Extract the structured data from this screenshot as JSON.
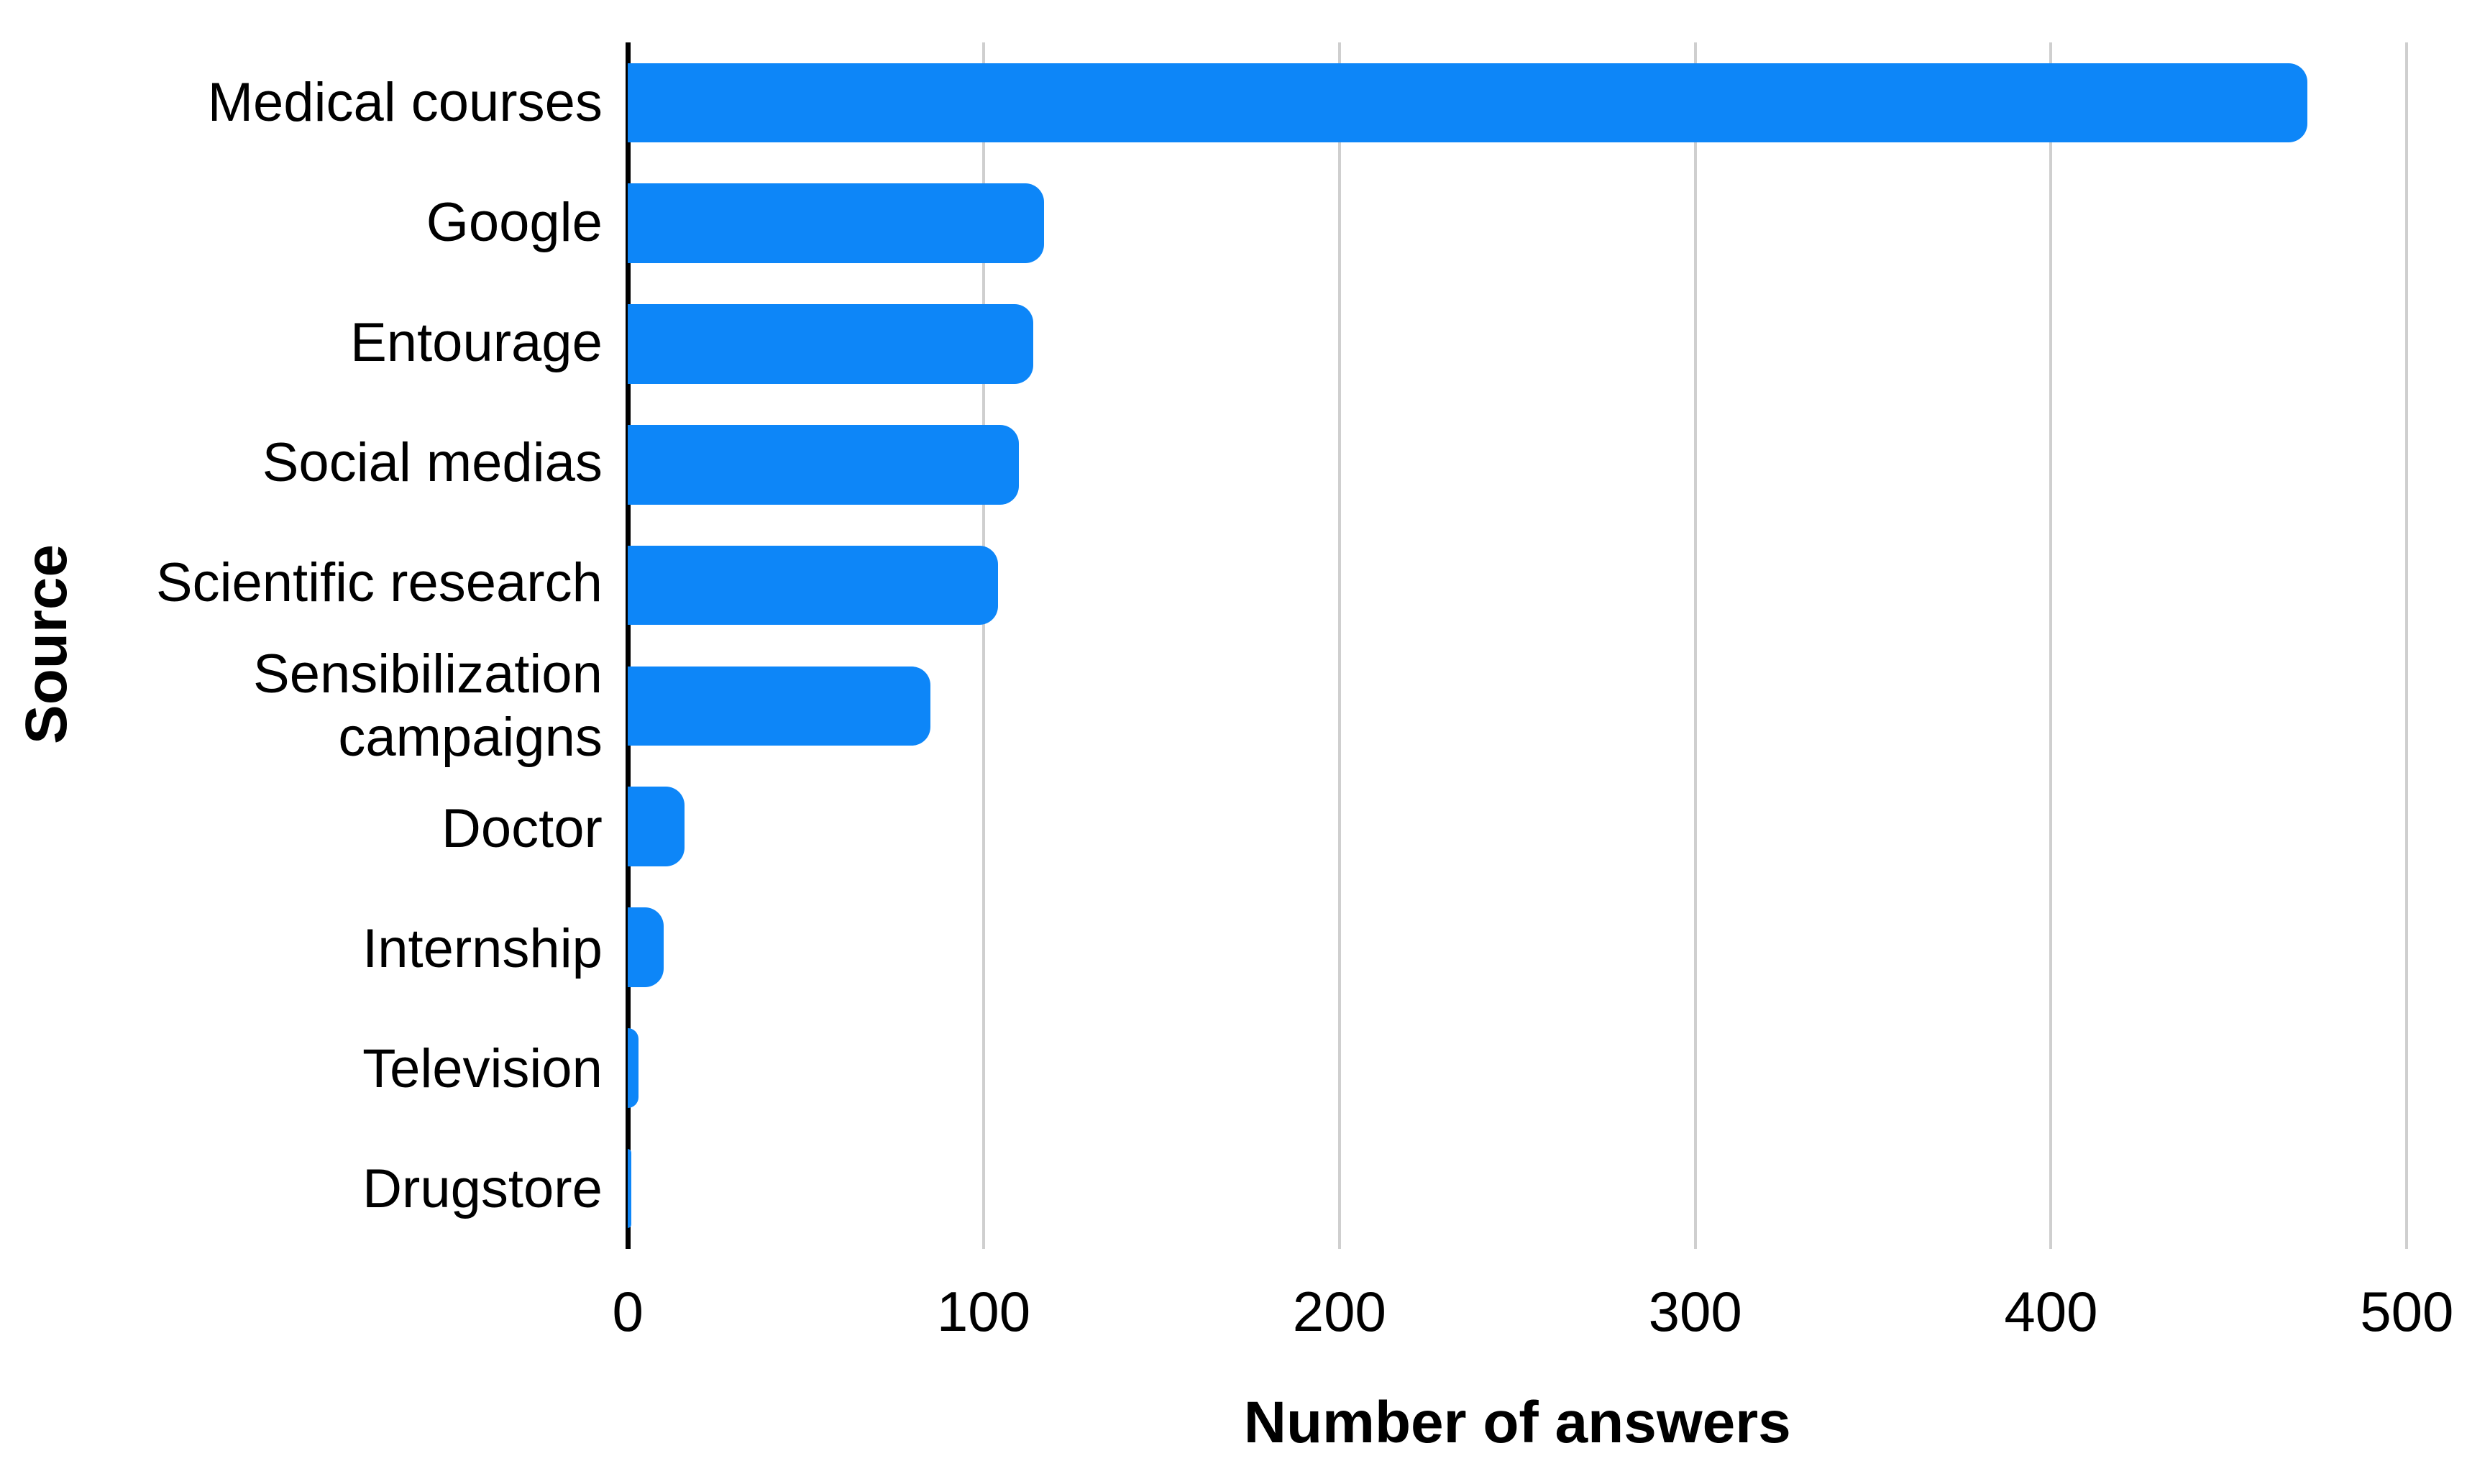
{
  "colors": {
    "bar": "#0d86f8",
    "gridline": "#cfcfcf",
    "axis_line": "#000000",
    "text": "#000000",
    "background": "#ffffff"
  },
  "chart_data": {
    "type": "bar",
    "orientation": "horizontal",
    "title": "",
    "categories": [
      "Medical courses",
      "Google",
      "Entourage",
      "Social medias",
      "Scientific research",
      "Sensibilization campaigns",
      "Doctor",
      "Internship",
      "Television",
      "Drugstore"
    ],
    "values": [
      472,
      117,
      114,
      110,
      104,
      85,
      16,
      10,
      3,
      1
    ],
    "xlabel": "Number of answers",
    "ylabel": "Source",
    "xlim": [
      0,
      500
    ],
    "xticks": [
      0,
      100,
      200,
      300,
      400,
      500
    ],
    "grid": "vertical-gridlines-on",
    "legend": "none"
  }
}
